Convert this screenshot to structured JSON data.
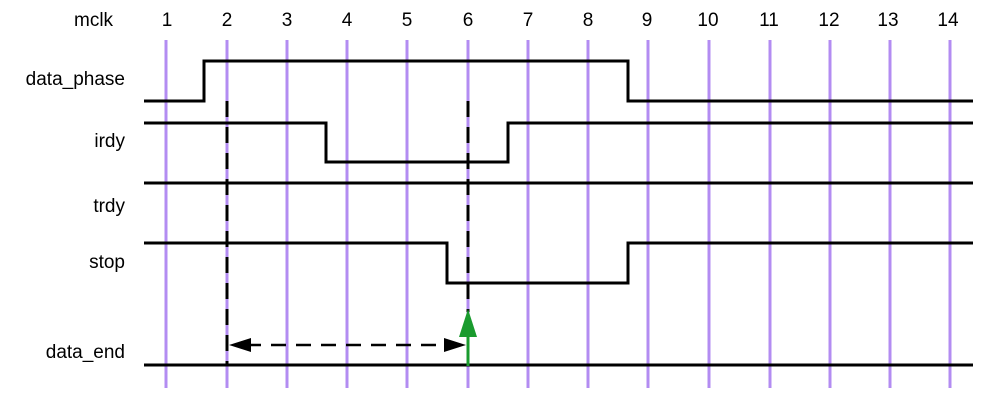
{
  "title": "mclk",
  "clock_labels": [
    "1",
    "2",
    "3",
    "4",
    "5",
    "6",
    "7",
    "8",
    "9",
    "10",
    "11",
    "12",
    "13",
    "14"
  ],
  "signals": [
    {
      "name": "data_phase"
    },
    {
      "name": "irdy"
    },
    {
      "name": "trdy"
    },
    {
      "name": "stop"
    },
    {
      "name": "data_end"
    }
  ],
  "colors": {
    "clock_line": "#b38cf2",
    "signal_line": "#000000",
    "arrow_up": "#1a9b2e",
    "dashed": "#000000"
  },
  "icons": {
    "event_arrow": "up-arrow-icon",
    "span_arrow": "double-headed-arrow-icon"
  }
}
